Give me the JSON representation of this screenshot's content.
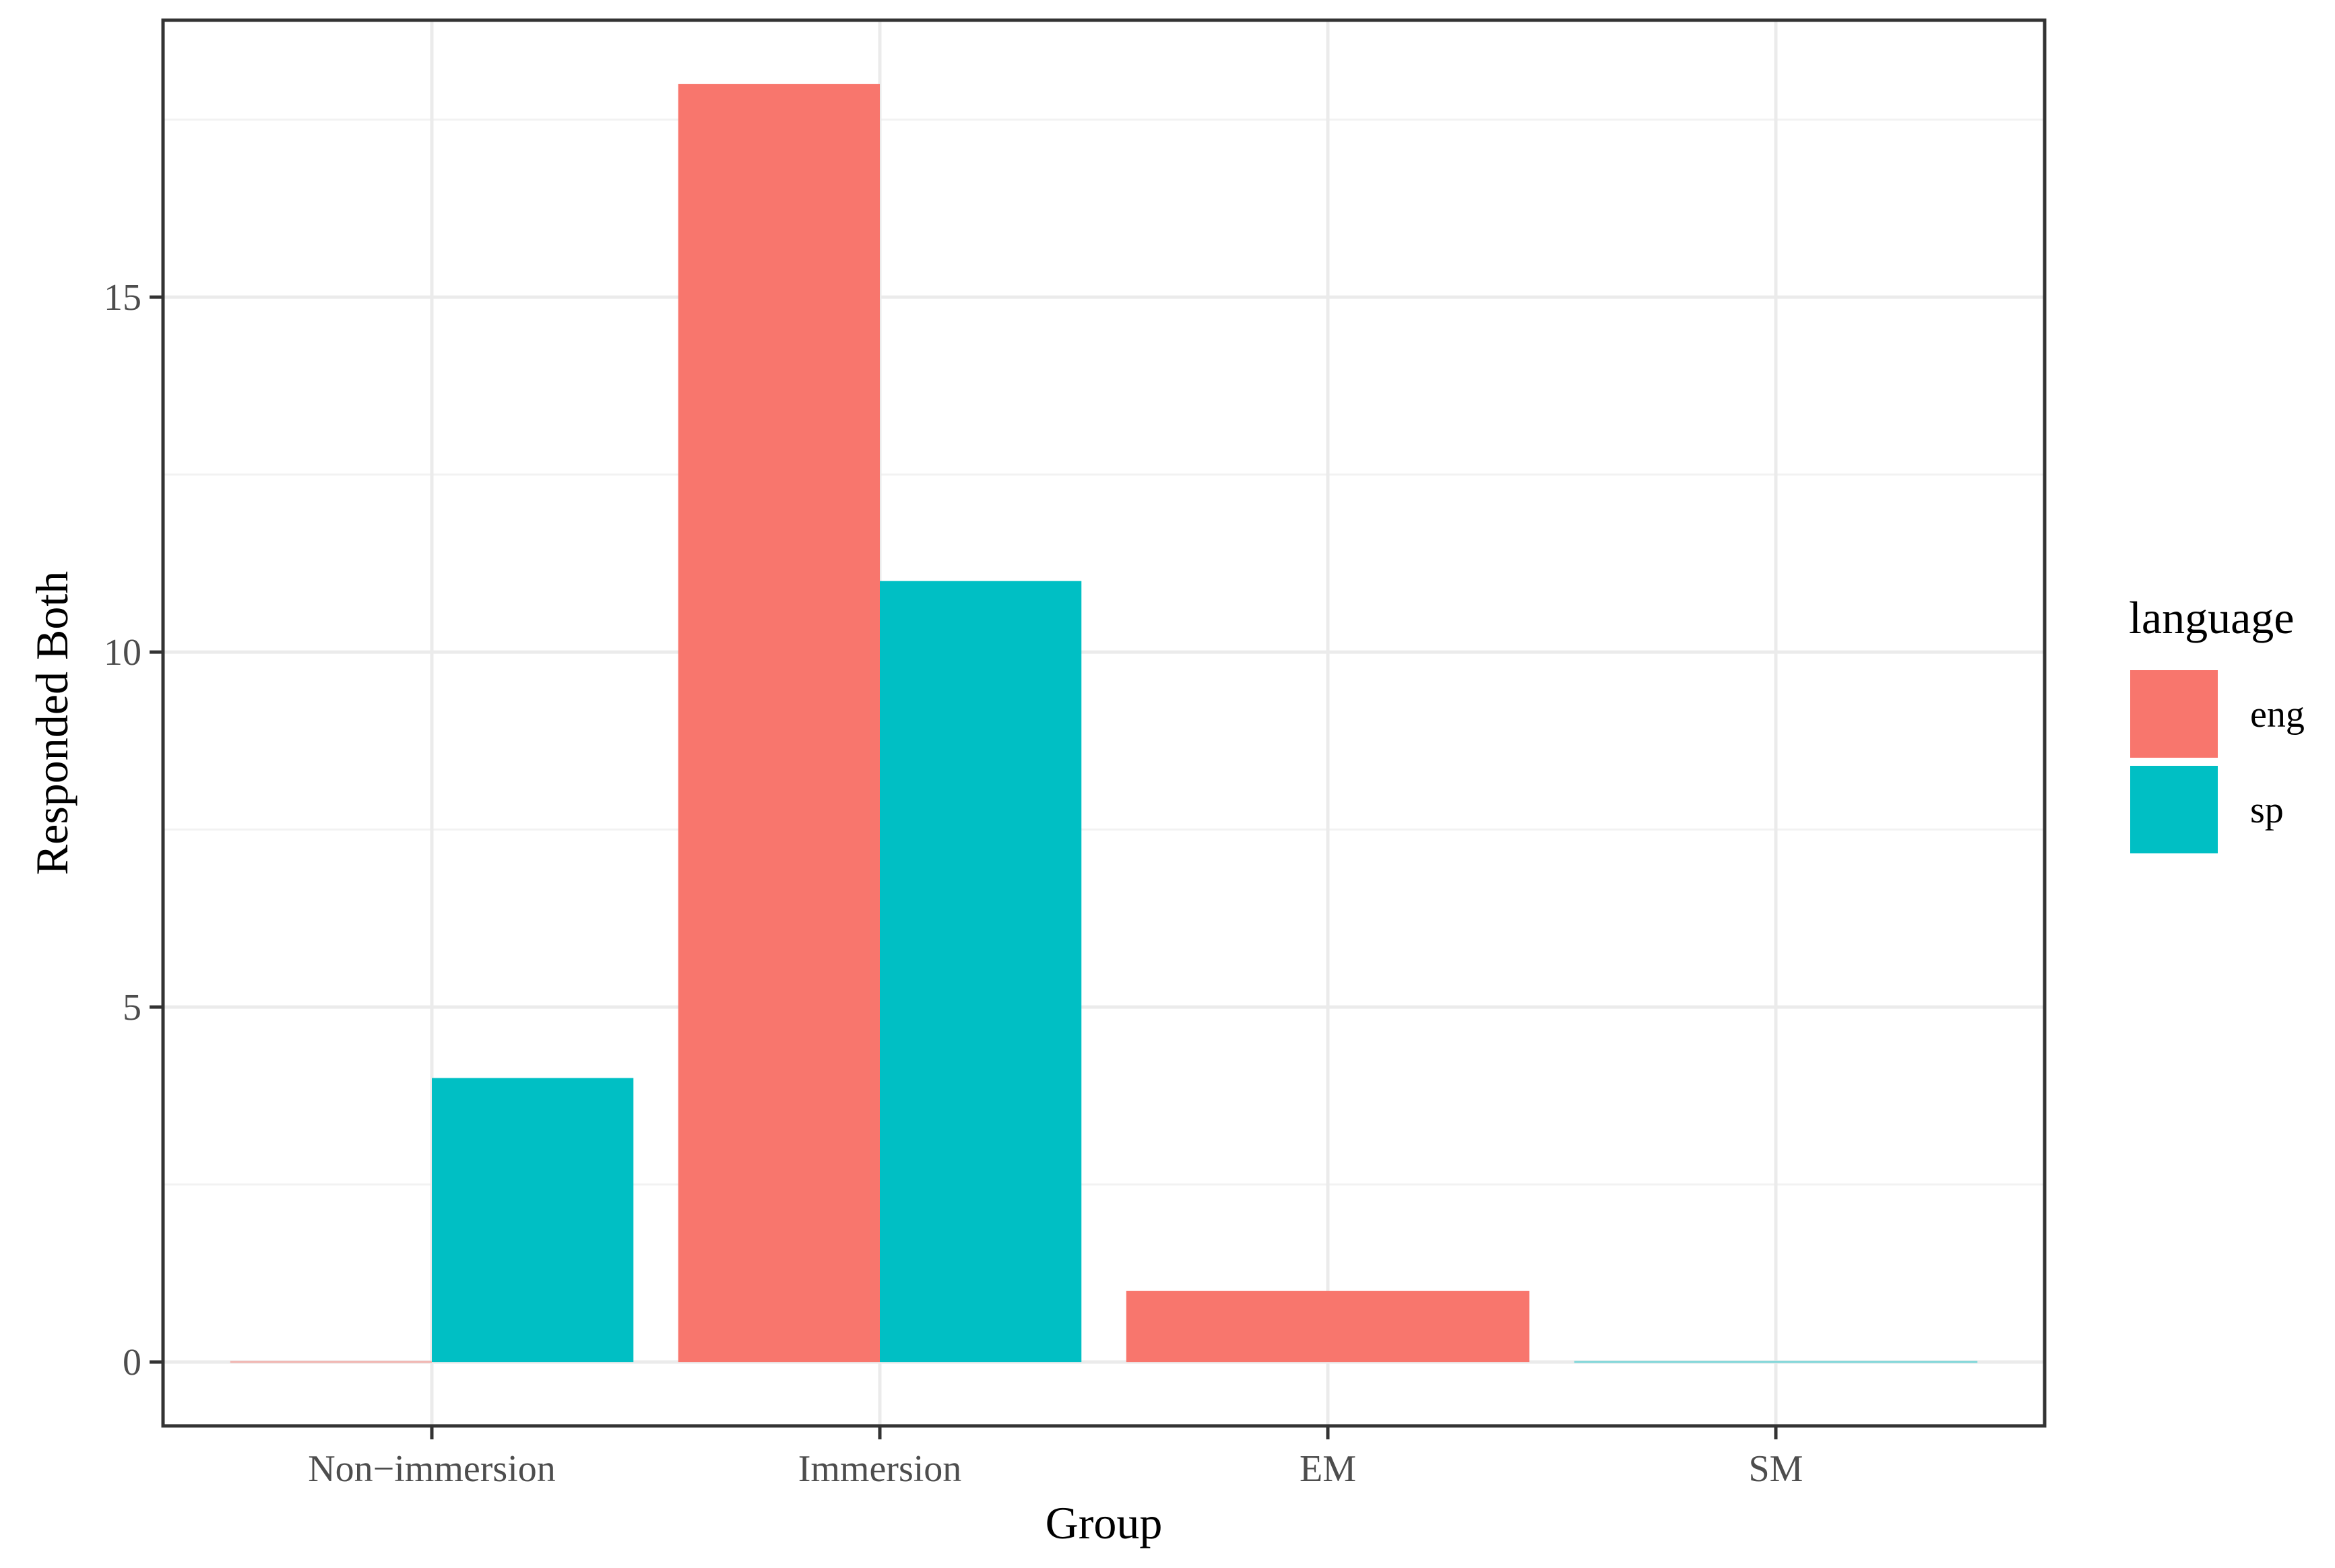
{
  "chart_data": {
    "type": "bar",
    "categories": [
      "Non−immersion",
      "Immersion",
      "EM",
      "SM"
    ],
    "series": [
      {
        "name": "eng",
        "color": "#F8766D",
        "values": [
          0,
          18,
          1,
          null
        ]
      },
      {
        "name": "sp",
        "color": "#00BFC4",
        "values": [
          4,
          11,
          null,
          0
        ]
      }
    ],
    "xlabel": "Group",
    "ylabel": "Responded Both",
    "ylim": [
      -0.9,
      18.9
    ],
    "yticks": [
      0,
      5,
      10,
      15
    ],
    "yticklabels": [
      "0",
      "5",
      "10",
      "15"
    ],
    "grid": true,
    "legend": {
      "title": "language",
      "position": "right"
    }
  }
}
